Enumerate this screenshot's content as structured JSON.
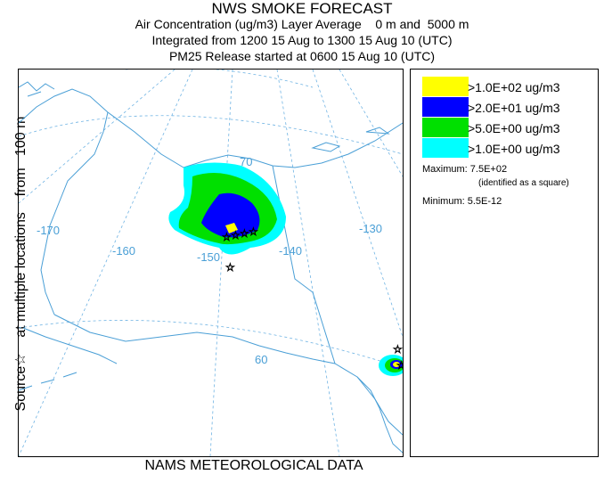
{
  "header": {
    "title": "NWS SMOKE FORECAST",
    "line2": "Air Concentration (ug/m3) Layer Average    0 m and  5000 m",
    "line3": "Integrated from 1200 15 Aug to 1300 15 Aug 10 (UTC)",
    "line4": "PM25 Release started at 0600 15 Aug 10 (UTC)"
  },
  "side_label": "Source☆    at multiple locations    from   100 m",
  "footer": "NAMS METEOROLOGICAL DATA",
  "legend": {
    "items": [
      {
        "label": ">1.0E+02 ug/m3",
        "color": "#ffff00"
      },
      {
        "label": ">2.0E+01 ug/m3",
        "color": "#0000ff"
      },
      {
        "label": ">5.0E+00 ug/m3",
        "color": "#00e000"
      },
      {
        "label": ">1.0E+00 ug/m3",
        "color": "#00ffff"
      }
    ],
    "maximum": "Maximum: 7.5E+02",
    "max_note": "(identified as a square)",
    "minimum": "Minimum: 5.5E-12"
  },
  "map": {
    "lon_labels": [
      "-170",
      "-160",
      "-150",
      "-140",
      "-130"
    ],
    "lat_labels": [
      "70",
      "60"
    ],
    "coast_color": "#4a9fd6",
    "grid_color": "#6fb3e3"
  }
}
